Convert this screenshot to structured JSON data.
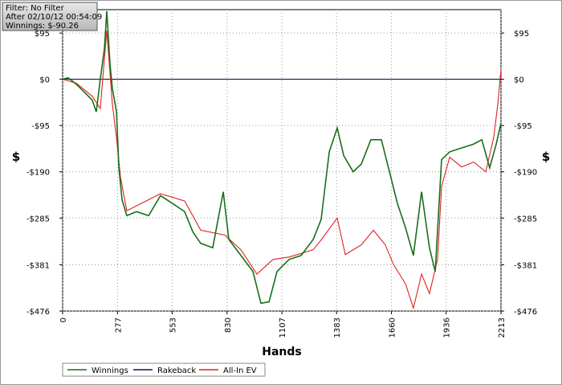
{
  "chart_data": {
    "type": "line",
    "info": [
      "Filter: No Filter",
      "After 02/10/12 00:54:09",
      "Winnings: $-90.26"
    ],
    "x_label": "Hands",
    "y_label": "$",
    "xlim": [
      0,
      2213
    ],
    "ylim": [
      -476,
      143
    ],
    "xticks": [
      0,
      277,
      553,
      830,
      1107,
      1383,
      1660,
      1936,
      2213
    ],
    "yticks": [
      {
        "value": 95,
        "label": "$95"
      },
      {
        "value": 0,
        "label": "$0"
      },
      {
        "value": -95,
        "label": "-$95"
      },
      {
        "value": -190,
        "label": "-$190"
      },
      {
        "value": -285,
        "label": "-$285"
      },
      {
        "value": -381,
        "label": "-$381"
      },
      {
        "value": -476,
        "label": "-$476"
      }
    ],
    "grid": true,
    "series": [
      {
        "name": "Winnings",
        "color": "#1a6e1a",
        "x": [
          0,
          28,
          69,
          109,
          150,
          170,
          190,
          211,
          223,
          239,
          251,
          272,
          284,
          300,
          324,
          373,
          434,
          494,
          555,
          616,
          657,
          697,
          758,
          811,
          839,
          900,
          961,
          1001,
          1042,
          1082,
          1143,
          1204,
          1265,
          1305,
          1346,
          1386,
          1419,
          1467,
          1508,
          1556,
          1609,
          1650,
          1690,
          1731,
          1771,
          1812,
          1852,
          1881,
          1913,
          1954,
          2014,
          2075,
          2116,
          2156,
          2189,
          2213
        ],
        "values": [
          0,
          3,
          -10,
          -26,
          -43,
          -67,
          0,
          64,
          140,
          31,
          -18,
          -67,
          -182,
          -247,
          -280,
          -272,
          -280,
          -239,
          -255,
          -272,
          -313,
          -337,
          -346,
          -231,
          -329,
          -362,
          -395,
          -460,
          -457,
          -395,
          -370,
          -362,
          -329,
          -288,
          -149,
          -100,
          -157,
          -190,
          -174,
          -124,
          -124,
          -190,
          -255,
          -305,
          -362,
          -231,
          -346,
          -395,
          -165,
          -149,
          -141,
          -133,
          -124,
          -182,
          -133,
          -90.26
        ]
      },
      {
        "name": "Rakeback",
        "color": "#0a1a4a",
        "x": [
          0,
          2213
        ],
        "values": [
          0,
          0
        ]
      },
      {
        "name": "All-In EV",
        "color": "#e02020",
        "x": [
          0,
          69,
          150,
          190,
          223,
          251,
          272,
          292,
          324,
          494,
          616,
          697,
          819,
          900,
          981,
          1062,
          1143,
          1265,
          1305,
          1386,
          1427,
          1508,
          1569,
          1629,
          1670,
          1731,
          1771,
          1812,
          1852,
          1893,
          1913,
          1954,
          2014,
          2075,
          2136,
          2176,
          2197,
          2213
        ],
        "values": [
          0,
          -8,
          -35,
          -60,
          100,
          -50,
          -120,
          -200,
          -270,
          -235,
          -250,
          -310,
          -320,
          -350,
          -400,
          -370,
          -365,
          -350,
          -330,
          -285,
          -360,
          -340,
          -310,
          -340,
          -380,
          -420,
          -470,
          -400,
          -440,
          -370,
          -220,
          -160,
          -180,
          -170,
          -190,
          -120,
          -50,
          20
        ]
      }
    ]
  }
}
